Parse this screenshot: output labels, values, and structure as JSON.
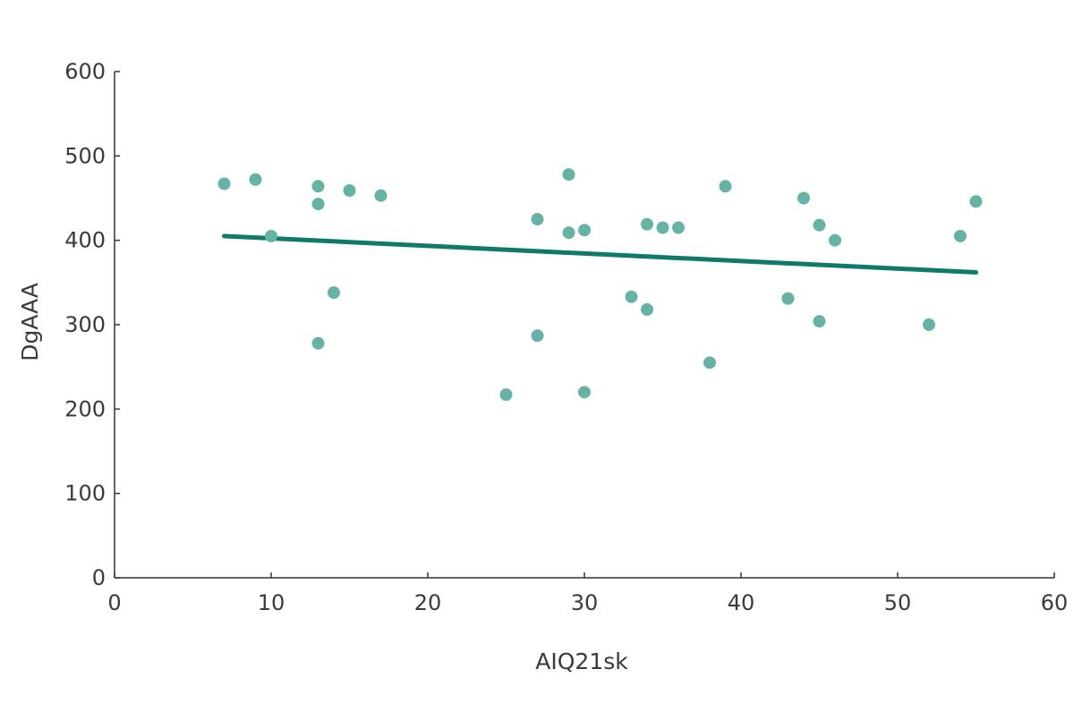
{
  "chart_data": {
    "type": "scatter",
    "title": "",
    "xlabel": "AIQ21sk",
    "ylabel": "DgAAA",
    "xlim": [
      0,
      60
    ],
    "ylim": [
      0,
      600
    ],
    "x_ticks": [
      0,
      10,
      20,
      30,
      40,
      50,
      60
    ],
    "y_ticks": [
      0,
      100,
      200,
      300,
      400,
      500,
      600
    ],
    "grid": false,
    "legend": "none",
    "point_color": "#66b3a6",
    "trend_color": "#0e7a68",
    "points": [
      {
        "x": 7,
        "y": 467
      },
      {
        "x": 9,
        "y": 472
      },
      {
        "x": 10,
        "y": 405
      },
      {
        "x": 13,
        "y": 464
      },
      {
        "x": 13,
        "y": 443
      },
      {
        "x": 13,
        "y": 278
      },
      {
        "x": 14,
        "y": 338
      },
      {
        "x": 15,
        "y": 459
      },
      {
        "x": 17,
        "y": 453
      },
      {
        "x": 25,
        "y": 217
      },
      {
        "x": 27,
        "y": 425
      },
      {
        "x": 27,
        "y": 287
      },
      {
        "x": 29,
        "y": 478
      },
      {
        "x": 29,
        "y": 409
      },
      {
        "x": 30,
        "y": 412
      },
      {
        "x": 30,
        "y": 220
      },
      {
        "x": 33,
        "y": 333
      },
      {
        "x": 34,
        "y": 419
      },
      {
        "x": 34,
        "y": 318
      },
      {
        "x": 35,
        "y": 415
      },
      {
        "x": 36,
        "y": 415
      },
      {
        "x": 38,
        "y": 255
      },
      {
        "x": 39,
        "y": 464
      },
      {
        "x": 43,
        "y": 331
      },
      {
        "x": 44,
        "y": 450
      },
      {
        "x": 45,
        "y": 418
      },
      {
        "x": 45,
        "y": 304
      },
      {
        "x": 46,
        "y": 400
      },
      {
        "x": 52,
        "y": 300
      },
      {
        "x": 54,
        "y": 405
      },
      {
        "x": 55,
        "y": 446
      }
    ],
    "trendline": {
      "x": [
        7,
        55
      ],
      "y": [
        405,
        362
      ]
    }
  }
}
